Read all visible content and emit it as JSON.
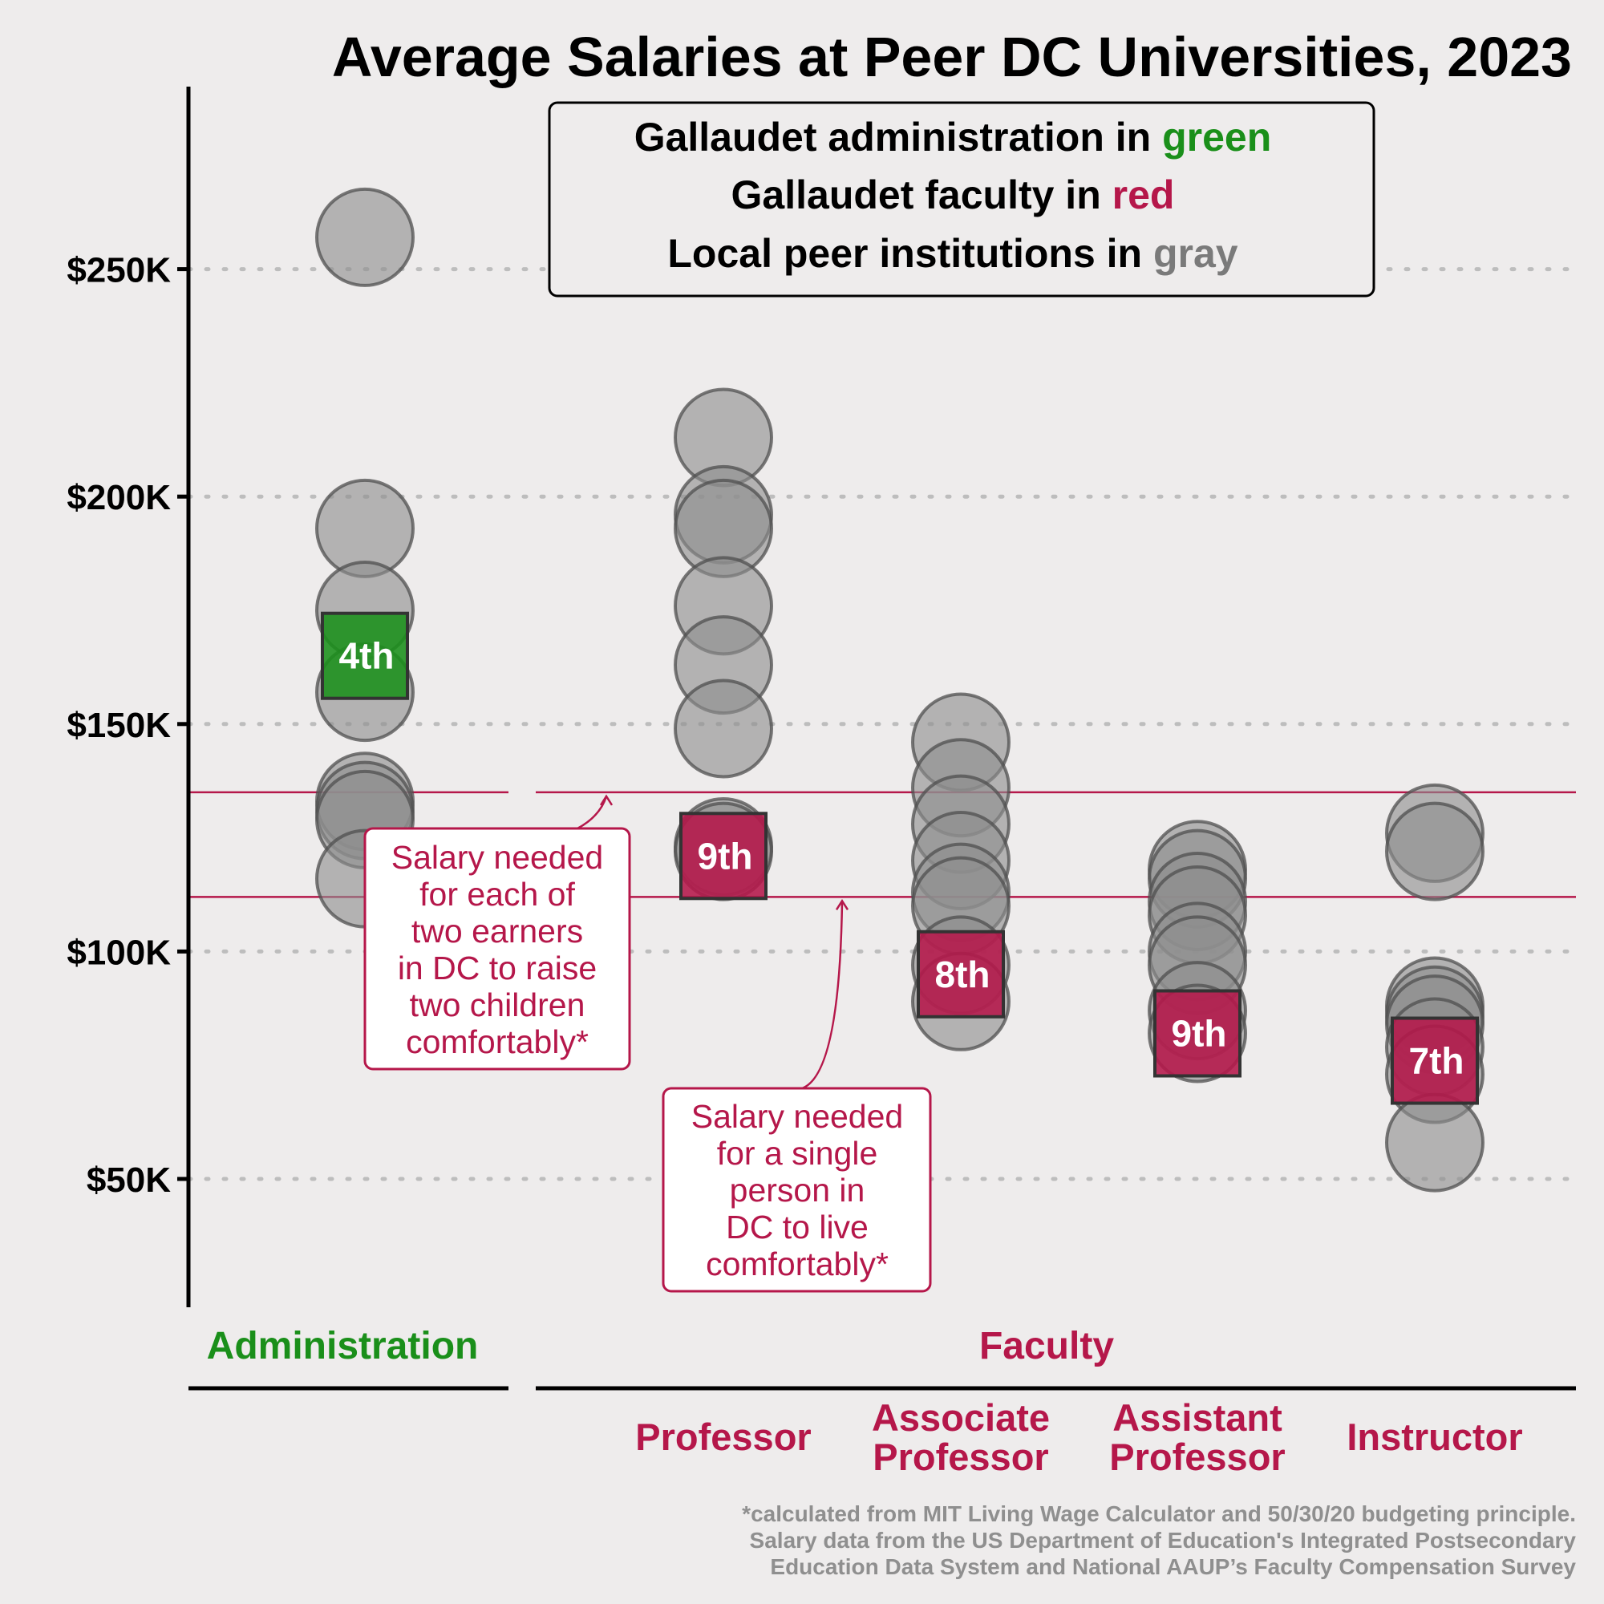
{
  "colors": {
    "background": "#eeecec",
    "green": "#1a8f1a",
    "red": "#b5174a",
    "gray": "#7a7a7a",
    "peer_fill": "#8e8e8e",
    "peer_stroke": "#4f4f4f",
    "grid": "#bdbdbd",
    "note": "#8f8f8f"
  },
  "chart_data": {
    "type": "scatter",
    "title": "Average Salaries at Peer DC Universities, 2023",
    "ylim": [
      20000,
      280000
    ],
    "yticks": [
      {
        "value": 50000,
        "label": "$50K"
      },
      {
        "value": 100000,
        "label": "$100K"
      },
      {
        "value": 150000,
        "label": "$150K"
      },
      {
        "value": 200000,
        "label": "$200K"
      },
      {
        "value": 250000,
        "label": "$250K"
      }
    ],
    "grid": "horizontal-dotted",
    "legend": {
      "placement": "top-center",
      "lines": [
        {
          "prefix": "Gallaudet administration in ",
          "word": "green",
          "color": "green"
        },
        {
          "prefix": "Gallaudet faculty in ",
          "word": "red",
          "color": "red"
        },
        {
          "prefix": "Local peer institutions in ",
          "word": "gray",
          "color": "gray"
        }
      ]
    },
    "groups": [
      {
        "label": "Administration",
        "color": "green",
        "categories": [
          0
        ]
      },
      {
        "label": "Faculty",
        "color": "red",
        "categories": [
          1,
          2,
          3,
          4
        ]
      }
    ],
    "categories": [
      {
        "label": "",
        "group": "Administration",
        "peers": [
          257000,
          193000,
          175000,
          157000,
          133000,
          131000,
          129000,
          116000
        ],
        "gallaudet": {
          "value": 165000,
          "rank": "4th",
          "color": "green"
        }
      },
      {
        "label": "Professor",
        "group": "Faculty",
        "peers": [
          213000,
          196000,
          193000,
          176000,
          163000,
          149000,
          123000,
          122000
        ],
        "gallaudet": {
          "value": 121000,
          "rank": "9th",
          "color": "red"
        }
      },
      {
        "label": "Associate Professor",
        "group": "Faculty",
        "peers": [
          146000,
          136000,
          128000,
          120000,
          113000,
          110000,
          97000,
          89000
        ],
        "gallaudet": {
          "value": 95000,
          "rank": "8th",
          "color": "red"
        }
      },
      {
        "label": "Assistant Professor",
        "group": "Faculty",
        "peers": [
          118000,
          116000,
          111000,
          108000,
          100000,
          97000,
          87000,
          82000
        ],
        "gallaudet": {
          "value": 82000,
          "rank": "9th",
          "color": "red"
        }
      },
      {
        "label": "Instructor",
        "group": "Faculty",
        "peers": [
          126000,
          122000,
          88000,
          86000,
          84000,
          79000,
          73000,
          58000
        ],
        "gallaudet": {
          "value": 76000,
          "rank": "7th",
          "color": "red"
        }
      }
    ],
    "reference_lines": [
      {
        "value": 135000,
        "color": "red"
      },
      {
        "value": 112000,
        "color": "red"
      }
    ],
    "annotations": [
      {
        "lines": [
          "Salary needed",
          "for each of",
          "two earners",
          "in DC to raise",
          "two children",
          "comfortably*"
        ],
        "target": 135000
      },
      {
        "lines": [
          "Salary needed",
          "for a single",
          "person in",
          "DC to live",
          "comfortably*"
        ],
        "target": 112000
      }
    ],
    "footnote": [
      "*calculated from MIT Living Wage Calculator and 50/30/20 budgeting principle.",
      "Salary data from the US Department of Education's Integrated Postsecondary",
      "Education Data System and National AAUP’s Faculty Compensation Survey"
    ]
  }
}
